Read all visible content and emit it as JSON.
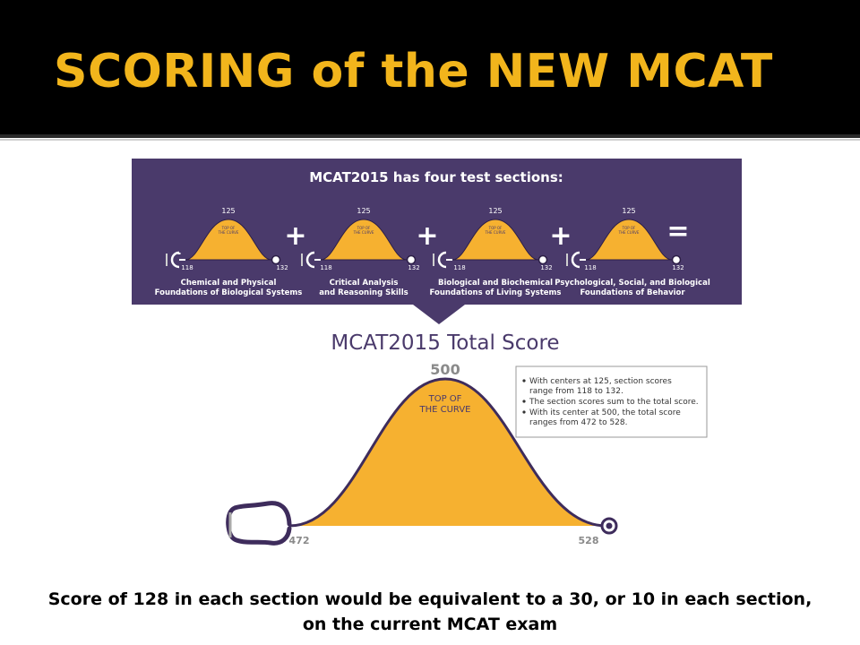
{
  "slide_title": "SCORING of the NEW MCAT",
  "sections_panel": {
    "heading": "MCAT2015 has four test sections:",
    "curve_center": "125",
    "curve_label_line1": "TOP OF",
    "curve_label_line2": "THE CURVE",
    "range_min": "118",
    "range_max": "132",
    "plus": "+",
    "equals": "=",
    "sections": [
      {
        "line1": "Chemical and Physical",
        "line2": "Foundations of Biological Systems"
      },
      {
        "line1": "Critical Analysis",
        "line2": "and Reasoning Skills"
      },
      {
        "line1": "Biological and Biochemical",
        "line2": "Foundations of Living Systems"
      },
      {
        "line1": "Psychological, Social, and Biological",
        "line2": "Foundations of Behavior"
      }
    ]
  },
  "total": {
    "heading": "MCAT2015 Total Score",
    "center": "500",
    "curve_label_line1": "TOP OF",
    "curve_label_line2": "THE CURVE",
    "min": "472",
    "max": "528"
  },
  "notes": [
    "With centers at 125, section scores",
    "range from 118 to 132.",
    "The section scores sum to the total score.",
    "With its center at 500, the total score",
    "ranges from 472 to 528."
  ],
  "caption": {
    "line1": "Score of 128 in each section would be equivalent to a 30, or 10 in each section,",
    "line2": "on the current MCAT exam"
  },
  "colors": {
    "title_gold": "#f2b51c",
    "panel_purple": "#4a3a6b",
    "curve_gold": "#f6b130",
    "outline_purple": "#3e2c5c"
  }
}
